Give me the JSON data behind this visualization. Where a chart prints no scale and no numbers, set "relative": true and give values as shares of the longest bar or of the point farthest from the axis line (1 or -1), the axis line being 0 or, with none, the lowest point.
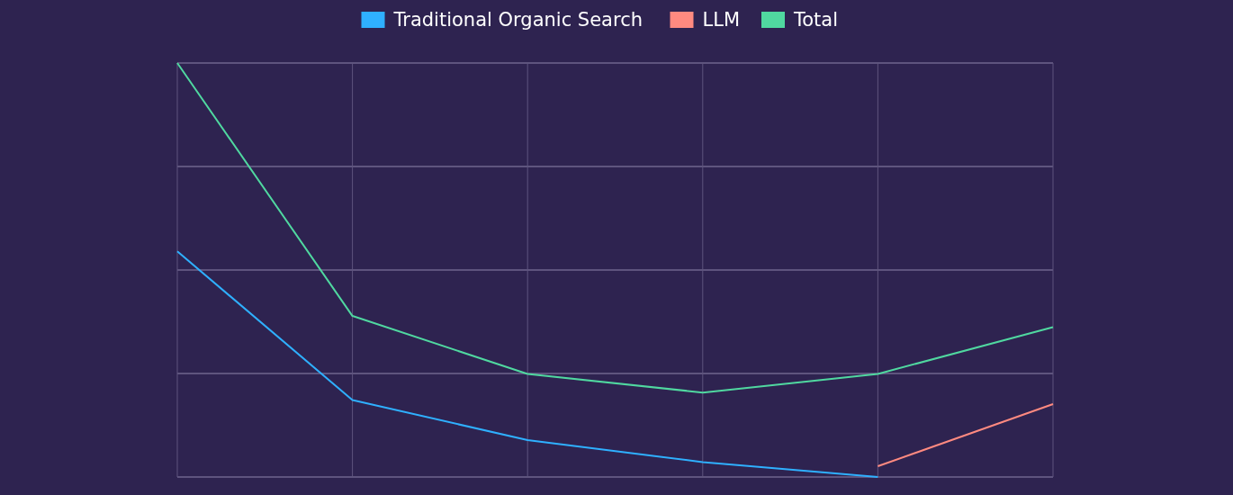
{
  "chart_data": {
    "type": "line",
    "relative": true,
    "categories": [
      null,
      null,
      null,
      null,
      null,
      null
    ],
    "grid": true,
    "legend": "top",
    "marker": "none",
    "line_style": "solid",
    "series": [
      {
        "name": "Traditional Organic Search",
        "color": "#2fb0ff",
        "values": [
          0.545,
          0.186,
          0.089,
          0.036,
          0,
          null
        ]
      },
      {
        "name": "LLM",
        "color": "#ff8a80",
        "values": [
          null,
          null,
          null,
          null,
          0.026,
          0.176
        ]
      },
      {
        "name": "Total",
        "color": "#50d8a0",
        "values": [
          1,
          0.389,
          0.249,
          0.204,
          0.249,
          0.362
        ]
      }
    ]
  }
}
